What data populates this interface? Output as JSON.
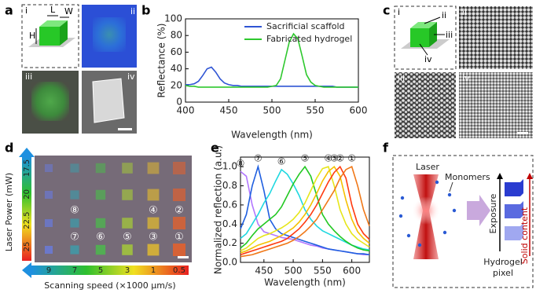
{
  "panel_labels": [
    "a",
    "b",
    "c",
    "d",
    "e",
    "f"
  ],
  "panel_a": {
    "sub_labels": [
      "i",
      "ii",
      "iii",
      "iv"
    ],
    "dimensions": [
      "L",
      "W",
      "H"
    ]
  },
  "panel_c": {
    "sub_labels": [
      "i",
      "ii",
      "iii",
      "iv"
    ],
    "cut_labels": [
      "ii",
      "iii",
      "iv"
    ]
  },
  "panel_d": {
    "y_label": "Laser Power (mW)",
    "power_ticks": [
      17.5,
      20,
      22.5,
      25
    ],
    "x_label": "Scanning speed (×1000 μm/s)",
    "speed_ticks": [
      9,
      7,
      5,
      3,
      1,
      0.5
    ],
    "pixel_labels": [
      "⑧",
      "④",
      "②",
      "⑦",
      "⑥",
      "⑤",
      "③",
      "①"
    ]
  },
  "panel_f": {
    "laser": "Laser",
    "monomers": "Monomers",
    "exposure": "Exposure",
    "solid_content": "Solid content",
    "pixel": [
      "Hydrogel",
      "pixel"
    ]
  },
  "chart_data": [
    {
      "type": "line",
      "xlabel": "Wavelength (nm)",
      "ylabel": "Reflectance (%)",
      "x": [
        400,
        405,
        410,
        415,
        420,
        425,
        430,
        435,
        440,
        445,
        450,
        455,
        460,
        465,
        470,
        475,
        480,
        485,
        490,
        495,
        500,
        505,
        510,
        515,
        520,
        525,
        530,
        535,
        540,
        545,
        550,
        555,
        560,
        565,
        570,
        575,
        580,
        585,
        590,
        595,
        600
      ],
      "xlim": [
        400,
        600
      ],
      "xticks": [
        400,
        450,
        500,
        550,
        600
      ],
      "ylim": [
        0,
        100
      ],
      "yticks": [
        0,
        20,
        40,
        60,
        80,
        100
      ],
      "legend": "upper right",
      "series": [
        {
          "name": "Sacrificial scaffold",
          "color": "#2f55d4",
          "values": [
            21,
            21,
            22,
            25,
            32,
            40,
            42,
            36,
            28,
            23,
            21,
            20,
            20,
            19,
            19,
            19,
            19,
            19,
            19,
            19,
            19,
            19,
            19,
            19,
            19,
            19,
            19,
            19,
            19,
            19,
            19,
            19,
            19,
            19,
            19,
            18,
            18,
            18,
            18,
            18,
            18
          ]
        },
        {
          "name": "Fabricated hydrogel",
          "color": "#2ec82e",
          "values": [
            20,
            19,
            19,
            18,
            18,
            18,
            18,
            18,
            18,
            18,
            18,
            18,
            18,
            18,
            18,
            18,
            18,
            18,
            18,
            18,
            19,
            20,
            28,
            50,
            72,
            82,
            76,
            55,
            33,
            24,
            20,
            19,
            18,
            18,
            18,
            18,
            18,
            18,
            18,
            18,
            18
          ]
        }
      ]
    },
    {
      "type": "line",
      "xlabel": "Wavelength (nm)",
      "ylabel": "Normalized reflection (a.u.)",
      "x": [
        410,
        420,
        430,
        440,
        450,
        460,
        470,
        480,
        490,
        500,
        510,
        520,
        530,
        540,
        550,
        560,
        570,
        580,
        590,
        600,
        610,
        620,
        630
      ],
      "xlim": [
        410,
        630
      ],
      "xticks": [
        450,
        500,
        550,
        600
      ],
      "ylim": [
        0,
        1.1
      ],
      "yticks": [
        {
          "value": 0,
          "label": "0.0"
        },
        0.2,
        0.4,
        0.6,
        0.8,
        {
          "value": 1,
          "label": "1.0"
        }
      ],
      "series": [
        {
          "name": "⑧",
          "color": "#b277ff",
          "values": [
            0.95,
            0.9,
            0.6,
            0.4,
            0.32,
            0.3,
            0.28,
            0.26,
            0.25,
            0.24,
            0.22,
            0.2,
            0.18,
            0.17,
            0.15,
            0.14,
            0.13,
            0.12,
            0.11,
            0.1,
            0.09,
            0.08,
            0.08
          ]
        },
        {
          "name": "⑦",
          "color": "#1f5fe0",
          "values": [
            0.35,
            0.5,
            0.8,
            1.0,
            0.75,
            0.45,
            0.35,
            0.3,
            0.28,
            0.26,
            0.24,
            0.22,
            0.2,
            0.18,
            0.16,
            0.14,
            0.13,
            0.12,
            0.11,
            0.1,
            0.09,
            0.09,
            0.08
          ]
        },
        {
          "name": "⑥",
          "color": "#1fd8e0",
          "values": [
            0.25,
            0.3,
            0.4,
            0.5,
            0.62,
            0.72,
            0.85,
            0.97,
            0.92,
            0.82,
            0.7,
            0.55,
            0.45,
            0.38,
            0.33,
            0.3,
            0.27,
            0.24,
            0.21,
            0.18,
            0.16,
            0.14,
            0.13
          ]
        },
        {
          "name": "⑤",
          "color": "#22c822",
          "values": [
            0.15,
            0.2,
            0.28,
            0.35,
            0.4,
            0.45,
            0.5,
            0.58,
            0.7,
            0.82,
            0.92,
            1.0,
            0.9,
            0.7,
            0.5,
            0.4,
            0.33,
            0.27,
            0.22,
            0.18,
            0.15,
            0.13,
            0.12
          ]
        },
        {
          "name": "④",
          "color": "#e6e61a",
          "values": [
            0.12,
            0.15,
            0.2,
            0.25,
            0.28,
            0.3,
            0.33,
            0.36,
            0.4,
            0.45,
            0.52,
            0.62,
            0.75,
            0.88,
            0.98,
            1.0,
            0.8,
            0.55,
            0.4,
            0.3,
            0.24,
            0.2,
            0.16
          ]
        },
        {
          "name": "③",
          "color": "#f5c000",
          "values": [
            0.1,
            0.12,
            0.15,
            0.18,
            0.2,
            0.22,
            0.25,
            0.28,
            0.32,
            0.36,
            0.42,
            0.5,
            0.6,
            0.72,
            0.85,
            0.95,
            1.0,
            0.9,
            0.65,
            0.45,
            0.32,
            0.25,
            0.2
          ]
        },
        {
          "name": "②",
          "color": "#ff3a10",
          "values": [
            0.08,
            0.1,
            0.12,
            0.14,
            0.16,
            0.18,
            0.2,
            0.22,
            0.25,
            0.3,
            0.35,
            0.42,
            0.5,
            0.6,
            0.72,
            0.84,
            0.94,
            1.0,
            0.88,
            0.6,
            0.4,
            0.3,
            0.24
          ]
        },
        {
          "name": "①",
          "color": "#f07818",
          "values": [
            0.06,
            0.07,
            0.08,
            0.1,
            0.12,
            0.14,
            0.16,
            0.18,
            0.2,
            0.23,
            0.27,
            0.32,
            0.38,
            0.45,
            0.55,
            0.65,
            0.75,
            0.88,
            0.97,
            1.0,
            0.8,
            0.55,
            0.38
          ]
        }
      ]
    }
  ]
}
